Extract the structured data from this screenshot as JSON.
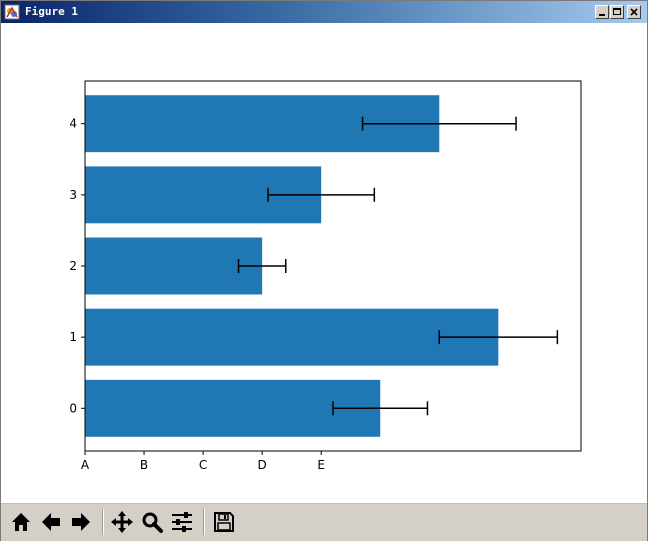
{
  "window": {
    "title": "Figure 1",
    "controls": [
      "minimize",
      "maximize",
      "close"
    ]
  },
  "colors": {
    "bar": "#1f77b4",
    "errorbar": "#000000",
    "title_gradient_start": "#0a246a",
    "title_gradient_end": "#a6caf0",
    "toolbar_bg": "#d4d0c8"
  },
  "chart_data": {
    "type": "bar",
    "orientation": "horizontal",
    "categories": [
      "0",
      "1",
      "2",
      "3",
      "4"
    ],
    "values": [
      5.0,
      7.0,
      3.0,
      4.0,
      6.0
    ],
    "errors": [
      0.8,
      1.0,
      0.4,
      0.9,
      1.3
    ],
    "xlim": [
      0,
      8.4
    ],
    "ylim": [
      -0.6,
      4.6
    ],
    "xticks": [
      0,
      1,
      2,
      3,
      4
    ],
    "xtick_labels": [
      "A",
      "B",
      "C",
      "D",
      "E"
    ],
    "yticks": [
      0,
      1,
      2,
      3,
      4
    ],
    "title": "",
    "xlabel": "",
    "ylabel": "",
    "grid": false
  },
  "toolbar": {
    "buttons": [
      {
        "name": "home",
        "icon": "home-icon"
      },
      {
        "name": "back",
        "icon": "arrow-left-icon"
      },
      {
        "name": "forward",
        "icon": "arrow-right-icon"
      },
      {
        "name": "pan",
        "icon": "move-icon"
      },
      {
        "name": "zoom",
        "icon": "magnifier-icon"
      },
      {
        "name": "configure",
        "icon": "sliders-icon"
      },
      {
        "name": "save",
        "icon": "floppy-icon"
      }
    ]
  }
}
